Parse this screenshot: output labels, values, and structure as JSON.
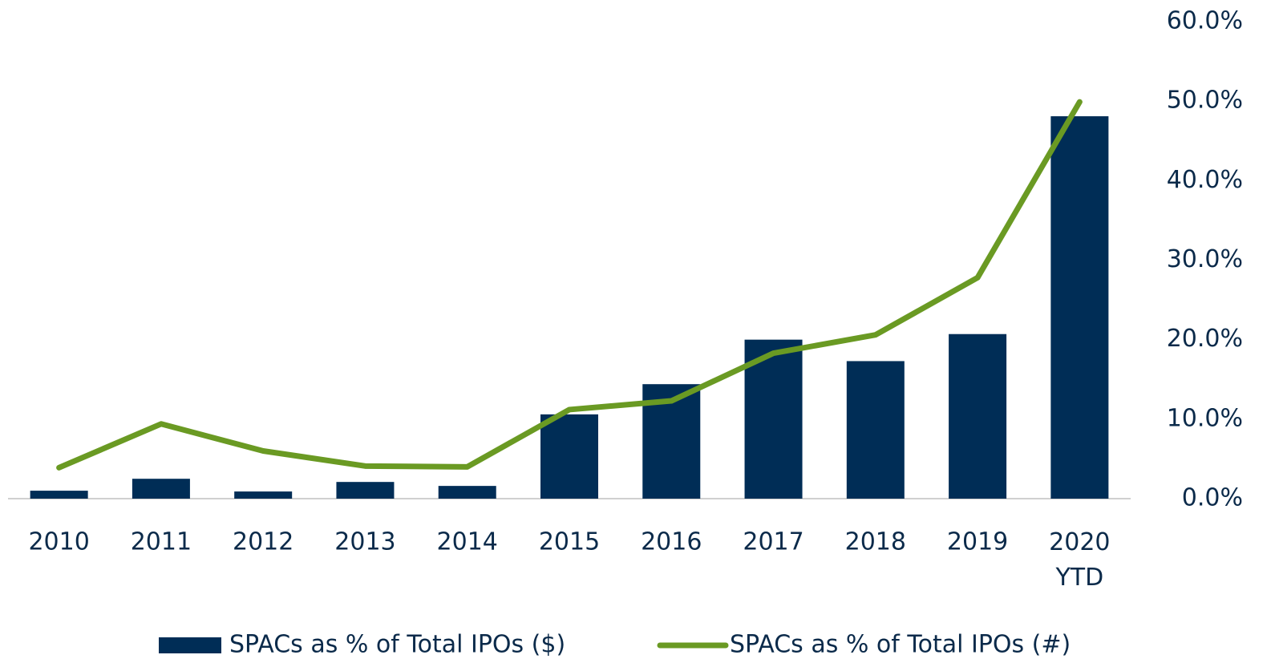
{
  "chart_data": {
    "type": "bar_line",
    "categories": [
      "2010",
      "2011",
      "2012",
      "2013",
      "2014",
      "2015",
      "2016",
      "2017",
      "2018",
      "2019",
      "2020 YTD"
    ],
    "series": [
      {
        "name": "SPACs as % of Total IPOs ($)",
        "type": "bar",
        "color": "#002d56",
        "values": [
          1.0,
          2.5,
          0.9,
          2.1,
          1.6,
          10.6,
          14.4,
          20.0,
          17.3,
          20.7,
          48.1
        ]
      },
      {
        "name": "SPACs as % of Total IPOs (#)",
        "type": "line",
        "color": "#6a9a23",
        "values": [
          3.9,
          9.4,
          6.0,
          4.1,
          4.0,
          11.2,
          12.3,
          18.3,
          20.6,
          27.8,
          49.9
        ]
      }
    ],
    "ylim": [
      0,
      60
    ],
    "yticks": [
      {
        "value": 0,
        "label": "0.0%"
      },
      {
        "value": 10,
        "label": "10.0%"
      },
      {
        "value": 20,
        "label": "20.0%"
      },
      {
        "value": 30,
        "label": "30.0%"
      },
      {
        "value": 40,
        "label": "40.0%"
      },
      {
        "value": 50,
        "label": "50.0%"
      },
      {
        "value": 60,
        "label": "60.0%"
      }
    ],
    "grid": false
  }
}
